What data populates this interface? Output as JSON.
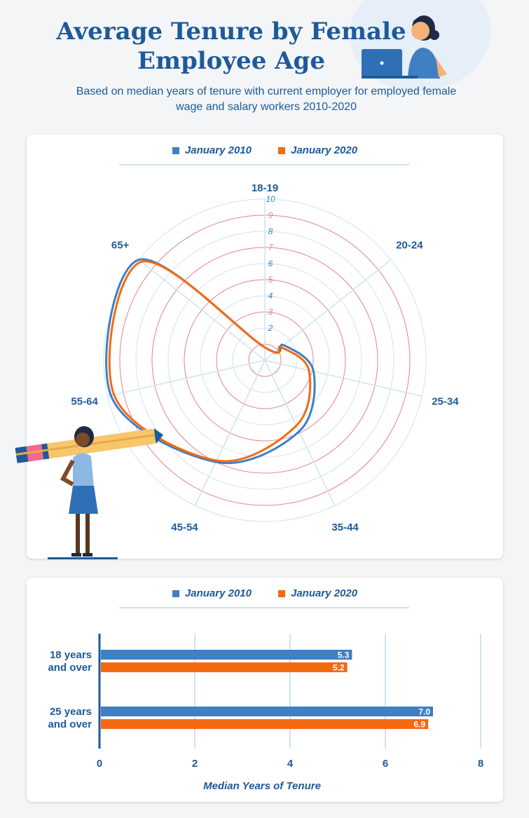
{
  "header": {
    "title": "Average Tenure by Female Employee Age",
    "subtitle": "Based on median years of tenure with current employer for employed female wage and salary workers 2010-2020"
  },
  "colors": {
    "series_2010": "#3f7fc4",
    "series_2020": "#f46a12",
    "title": "#1d5a99",
    "grid_blue": "#cfe3f3",
    "grid_red": "#e3818d"
  },
  "chart_data": [
    {
      "type": "radar",
      "legend_placement": "top",
      "categories": [
        "18-19",
        "20-24",
        "25-34",
        "35-44",
        "45-54",
        "55-64",
        "65+"
      ],
      "rlim": [
        0,
        10
      ],
      "r_ticks": [
        "2",
        "3",
        "4",
        "5",
        "6",
        "7",
        "8",
        "9",
        "10"
      ],
      "series": [
        {
          "name": "January 2010",
          "values": [
            0.8,
            1.5,
            3.1,
            4.9,
            7.0,
            9.8,
            10.0
          ]
        },
        {
          "name": "January 2020",
          "values": [
            0.8,
            1.3,
            2.8,
            4.5,
            6.9,
            9.6,
            9.8
          ]
        }
      ]
    },
    {
      "type": "bar",
      "orientation": "horizontal",
      "legend_placement": "top",
      "categories": [
        "18 years\nand over",
        "25 years\nand over"
      ],
      "xlabel": "Median Years of Tenure",
      "xlim": [
        0,
        8
      ],
      "x_ticks": [
        "0",
        "2",
        "4",
        "6",
        "8"
      ],
      "series": [
        {
          "name": "January 2010",
          "values": [
            5.3,
            7.0
          ],
          "labels": [
            "5.3",
            "7.0"
          ]
        },
        {
          "name": "January 2020",
          "values": [
            5.2,
            6.9
          ],
          "labels": [
            "5.2",
            "6.9"
          ]
        }
      ]
    }
  ]
}
